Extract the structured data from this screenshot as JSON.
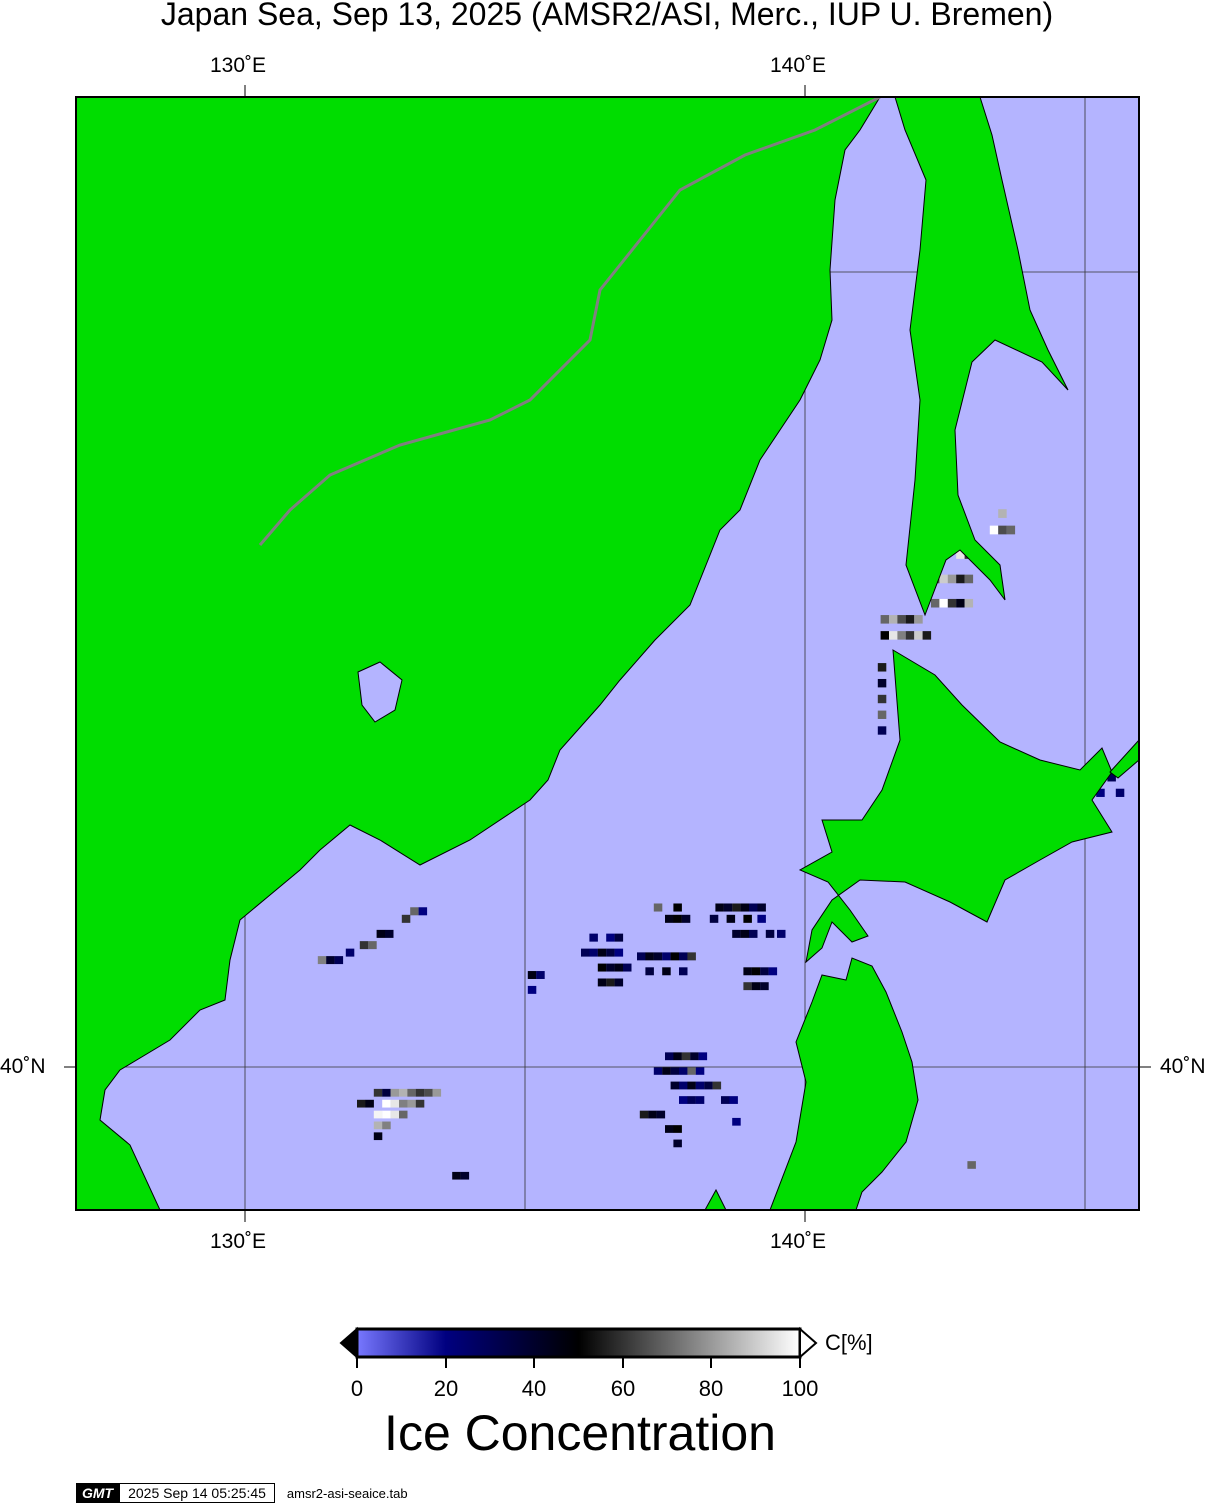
{
  "title": "Japan Sea, Sep 13, 2025 (AMSR2/ASI, Merc., IUP U. Bremen)",
  "axes": {
    "top_ticks": [
      "130˚E",
      "140˚E"
    ],
    "bottom_ticks": [
      "130˚E",
      "140˚E"
    ],
    "left_ticks": [
      "40˚N"
    ],
    "right_ticks": [
      "40˚N"
    ],
    "lon_range": [
      127,
      146
    ],
    "lat_range": [
      38.2,
      52.7
    ],
    "gridlines_lon": [
      130,
      135,
      140,
      145
    ],
    "gridlines_lat": [
      40,
      50
    ]
  },
  "colors": {
    "sea": "#b4b4ff",
    "land": "#00dd00",
    "border": "#808080",
    "colormap": [
      [
        "0",
        "#7878ff"
      ],
      [
        "20",
        "#000080"
      ],
      [
        "50",
        "#000000"
      ],
      [
        "100",
        "#ffffff"
      ]
    ]
  },
  "colorbar": {
    "unit": "C[%]",
    "ticks": [
      "0",
      "20",
      "40",
      "60",
      "80",
      "100"
    ],
    "title": "Ice Concentration"
  },
  "ice_cells_lon_lat_conc": [
    [
      136.0,
      41.5,
      30
    ],
    [
      136.15,
      41.5,
      25
    ],
    [
      136.3,
      41.5,
      45
    ],
    [
      136.45,
      41.5,
      35
    ],
    [
      136.6,
      41.5,
      20
    ],
    [
      136.3,
      41.3,
      50
    ],
    [
      136.45,
      41.3,
      40
    ],
    [
      136.6,
      41.3,
      45
    ],
    [
      136.75,
      41.3,
      30
    ],
    [
      136.3,
      41.1,
      45
    ],
    [
      136.45,
      41.1,
      55
    ],
    [
      136.6,
      41.1,
      40
    ],
    [
      136.15,
      41.7,
      25
    ],
    [
      136.45,
      41.7,
      20
    ],
    [
      136.6,
      41.7,
      35
    ],
    [
      137.0,
      41.45,
      30
    ],
    [
      137.15,
      41.45,
      45
    ],
    [
      137.3,
      41.45,
      40
    ],
    [
      137.45,
      41.45,
      25
    ],
    [
      137.6,
      41.45,
      50
    ],
    [
      137.75,
      41.45,
      30
    ],
    [
      137.9,
      41.45,
      60
    ],
    [
      137.15,
      41.25,
      35
    ],
    [
      137.45,
      41.25,
      45
    ],
    [
      137.75,
      41.25,
      30
    ],
    [
      137.5,
      41.95,
      45
    ],
    [
      137.65,
      41.95,
      50
    ],
    [
      137.8,
      41.95,
      40
    ],
    [
      137.3,
      42.1,
      70
    ],
    [
      137.65,
      42.1,
      50
    ],
    [
      138.4,
      42.1,
      45
    ],
    [
      138.55,
      42.1,
      40
    ],
    [
      138.7,
      42.1,
      55
    ],
    [
      138.85,
      42.1,
      45
    ],
    [
      139.0,
      42.1,
      30
    ],
    [
      139.15,
      42.1,
      40
    ],
    [
      138.3,
      41.95,
      35
    ],
    [
      138.6,
      41.95,
      45
    ],
    [
      138.9,
      41.95,
      50
    ],
    [
      139.15,
      41.95,
      20
    ],
    [
      138.7,
      41.75,
      40
    ],
    [
      138.85,
      41.75,
      45
    ],
    [
      139.0,
      41.75,
      30
    ],
    [
      139.3,
      41.75,
      35
    ],
    [
      139.5,
      41.75,
      25
    ],
    [
      138.9,
      41.25,
      45
    ],
    [
      139.05,
      41.25,
      50
    ],
    [
      139.2,
      41.25,
      35
    ],
    [
      139.35,
      41.25,
      20
    ],
    [
      138.9,
      41.05,
      60
    ],
    [
      139.05,
      41.05,
      45
    ],
    [
      139.2,
      41.05,
      40
    ],
    [
      135.05,
      41.2,
      45
    ],
    [
      135.2,
      41.2,
      25
    ],
    [
      135.05,
      41.0,
      20
    ],
    [
      137.5,
      40.1,
      30
    ],
    [
      137.65,
      40.1,
      45
    ],
    [
      137.8,
      40.1,
      60
    ],
    [
      137.95,
      40.1,
      40
    ],
    [
      138.1,
      40.1,
      20
    ],
    [
      137.3,
      39.9,
      25
    ],
    [
      137.45,
      39.9,
      45
    ],
    [
      137.6,
      39.9,
      35
    ],
    [
      137.75,
      39.9,
      25
    ],
    [
      137.9,
      39.9,
      70
    ],
    [
      138.05,
      39.9,
      20
    ],
    [
      137.6,
      39.7,
      40
    ],
    [
      137.75,
      39.7,
      25
    ],
    [
      137.9,
      39.7,
      45
    ],
    [
      138.05,
      39.7,
      25
    ],
    [
      138.2,
      39.7,
      35
    ],
    [
      138.35,
      39.7,
      60
    ],
    [
      137.75,
      39.5,
      20
    ],
    [
      137.9,
      39.5,
      30
    ],
    [
      138.05,
      39.5,
      25
    ],
    [
      138.5,
      39.5,
      30
    ],
    [
      138.65,
      39.5,
      20
    ],
    [
      137.05,
      39.3,
      55
    ],
    [
      137.2,
      39.3,
      45
    ],
    [
      137.35,
      39.3,
      40
    ],
    [
      137.5,
      39.1,
      45
    ],
    [
      137.65,
      39.1,
      50
    ],
    [
      137.65,
      38.9,
      40
    ],
    [
      138.7,
      39.2,
      20
    ],
    [
      132.3,
      39.6,
      60
    ],
    [
      132.45,
      39.6,
      35
    ],
    [
      132.6,
      39.6,
      80
    ],
    [
      132.75,
      39.6,
      85
    ],
    [
      132.9,
      39.6,
      70
    ],
    [
      133.05,
      39.6,
      60
    ],
    [
      133.2,
      39.6,
      65
    ],
    [
      133.35,
      39.6,
      80
    ],
    [
      132.0,
      39.45,
      55
    ],
    [
      132.15,
      39.45,
      45
    ],
    [
      132.45,
      39.45,
      100
    ],
    [
      132.6,
      39.45,
      95
    ],
    [
      132.75,
      39.45,
      75
    ],
    [
      132.9,
      39.45,
      80
    ],
    [
      133.05,
      39.45,
      60
    ],
    [
      132.3,
      39.3,
      98
    ],
    [
      132.45,
      39.3,
      100
    ],
    [
      132.6,
      39.3,
      95
    ],
    [
      132.75,
      39.3,
      70
    ],
    [
      132.3,
      39.15,
      85
    ],
    [
      132.45,
      39.15,
      75
    ],
    [
      132.3,
      39.0,
      45
    ],
    [
      133.7,
      38.45,
      45
    ],
    [
      133.85,
      38.45,
      40
    ],
    [
      131.3,
      41.4,
      75
    ],
    [
      131.45,
      41.4,
      40
    ],
    [
      131.6,
      41.4,
      30
    ],
    [
      131.8,
      41.5,
      25
    ],
    [
      132.05,
      41.6,
      60
    ],
    [
      132.2,
      41.6,
      70
    ],
    [
      132.35,
      41.75,
      45
    ],
    [
      132.5,
      41.75,
      40
    ],
    [
      132.8,
      41.95,
      60
    ],
    [
      132.95,
      42.05,
      70
    ],
    [
      133.1,
      42.05,
      20
    ],
    [
      141.35,
      45.8,
      70
    ],
    [
      141.5,
      45.8,
      85
    ],
    [
      141.65,
      45.8,
      65
    ],
    [
      141.8,
      45.8,
      55
    ],
    [
      141.95,
      45.8,
      80
    ],
    [
      141.35,
      45.6,
      50
    ],
    [
      141.5,
      45.6,
      95
    ],
    [
      141.65,
      45.6,
      75
    ],
    [
      141.8,
      45.6,
      60
    ],
    [
      141.95,
      45.6,
      90
    ],
    [
      142.1,
      45.6,
      55
    ],
    [
      142.25,
      46.0,
      70
    ],
    [
      142.4,
      46.0,
      100
    ],
    [
      142.55,
      46.0,
      60
    ],
    [
      142.7,
      46.0,
      45
    ],
    [
      142.85,
      46.0,
      85
    ],
    [
      142.25,
      46.3,
      65
    ],
    [
      142.4,
      46.3,
      90
    ],
    [
      142.55,
      46.3,
      80
    ],
    [
      142.7,
      46.3,
      55
    ],
    [
      142.85,
      46.3,
      70
    ],
    [
      142.7,
      46.6,
      95
    ],
    [
      142.85,
      46.6,
      60
    ],
    [
      143.3,
      46.9,
      100
    ],
    [
      143.45,
      46.9,
      65
    ],
    [
      143.6,
      46.9,
      70
    ],
    [
      143.45,
      47.1,
      85
    ],
    [
      141.3,
      45.2,
      55
    ],
    [
      141.3,
      45.0,
      40
    ],
    [
      141.3,
      44.8,
      60
    ],
    [
      141.3,
      44.6,
      70
    ],
    [
      141.3,
      44.4,
      30
    ],
    [
      145.4,
      43.8,
      30
    ],
    [
      145.55,
      43.6,
      25
    ],
    [
      145.2,
      43.6,
      20
    ],
    [
      142.9,
      38.6,
      70
    ]
  ],
  "footer": {
    "logo": "GMT",
    "timestamp": "2025 Sep 14 05:25:45",
    "filename": "amsr2-asi-seaice.tab"
  }
}
